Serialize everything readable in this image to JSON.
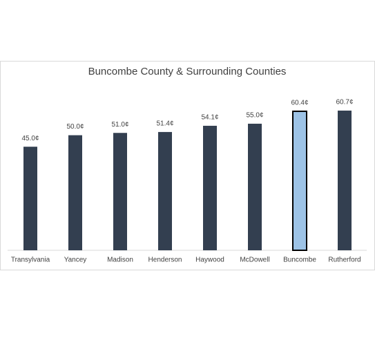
{
  "chart_data": {
    "type": "bar",
    "title": "Buncombe County & Surrounding Counties",
    "categories": [
      "Transylvania",
      "Yancey",
      "Madison",
      "Henderson",
      "Haywood",
      "McDowell",
      "Buncombe",
      "Rutherford"
    ],
    "values": [
      45.0,
      50.0,
      51.0,
      51.4,
      54.1,
      55.0,
      60.4,
      60.7
    ],
    "value_labels": [
      "45.0¢",
      "50.0¢",
      "51.0¢",
      "51.4¢",
      "54.1¢",
      "55.0¢",
      "60.4¢",
      "60.7¢"
    ],
    "colors": [
      "#333f50",
      "#333f50",
      "#333f50",
      "#333f50",
      "#333f50",
      "#333f50",
      "#9dc3e6",
      "#333f50"
    ],
    "ylim": [
      0,
      70
    ]
  }
}
